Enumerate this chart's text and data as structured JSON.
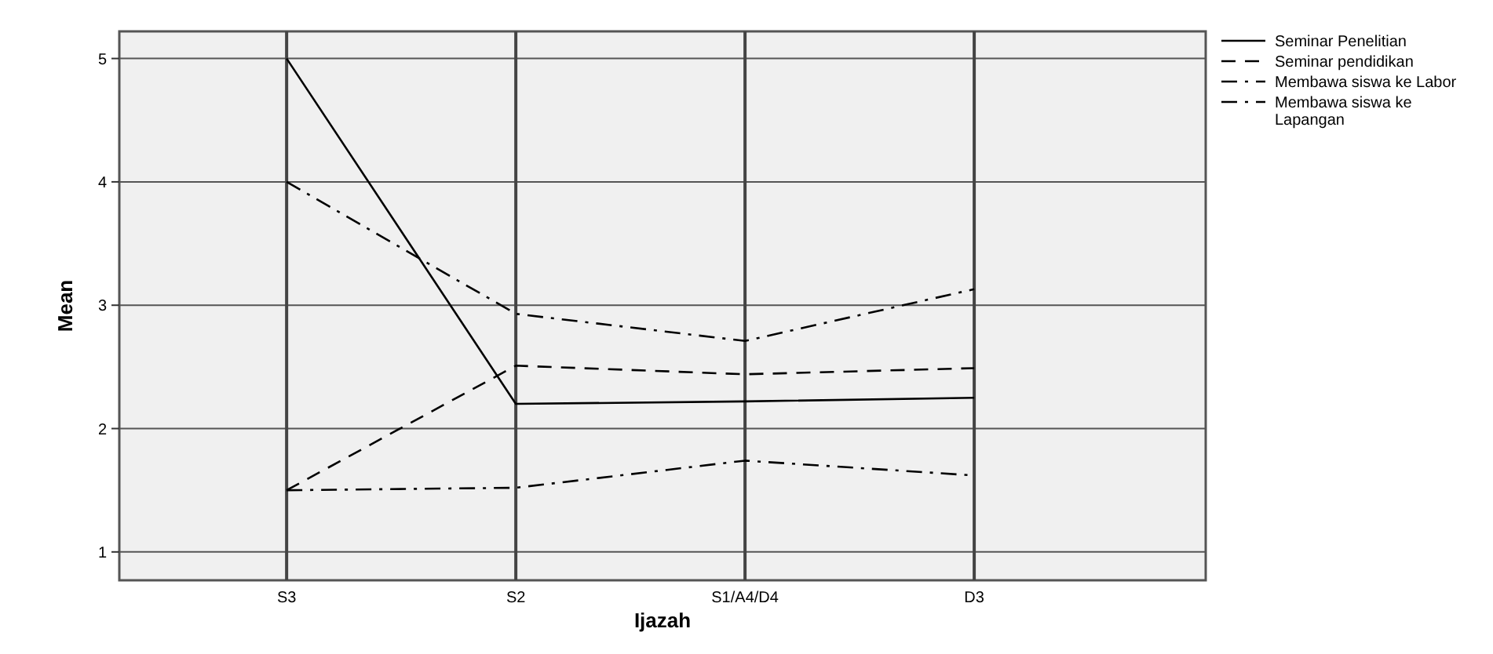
{
  "chart_data": {
    "type": "line",
    "xlabel": "Ijazah",
    "ylabel": "Mean",
    "categories": [
      "S3",
      "S2",
      "S1/A4/D4",
      "D3"
    ],
    "ylim": [
      0.77,
      5.22
    ],
    "yticks": [
      1,
      2,
      3,
      4,
      5
    ],
    "grid": true,
    "legend": "right",
    "series": [
      {
        "name": "Seminar Penelitian",
        "color": "#000000",
        "line_style": "solid",
        "values": [
          5,
          2.2,
          2.22,
          2.25
        ]
      },
      {
        "name": "Seminar pendidikan",
        "color": "#000000",
        "line_style": "dashed",
        "values": [
          1.5,
          2.51,
          2.44,
          2.49
        ]
      },
      {
        "name": "Membawa siswa ke Labor",
        "color": "#000000",
        "line_style": "dotted",
        "values": [
          4,
          2.93,
          2.71,
          3.13
        ]
      },
      {
        "name": "Membawa siswa ke Lapangan",
        "color": "#000000",
        "line_style": "dotted",
        "values": [
          1.5,
          1.52,
          1.74,
          1.62
        ]
      }
    ]
  }
}
